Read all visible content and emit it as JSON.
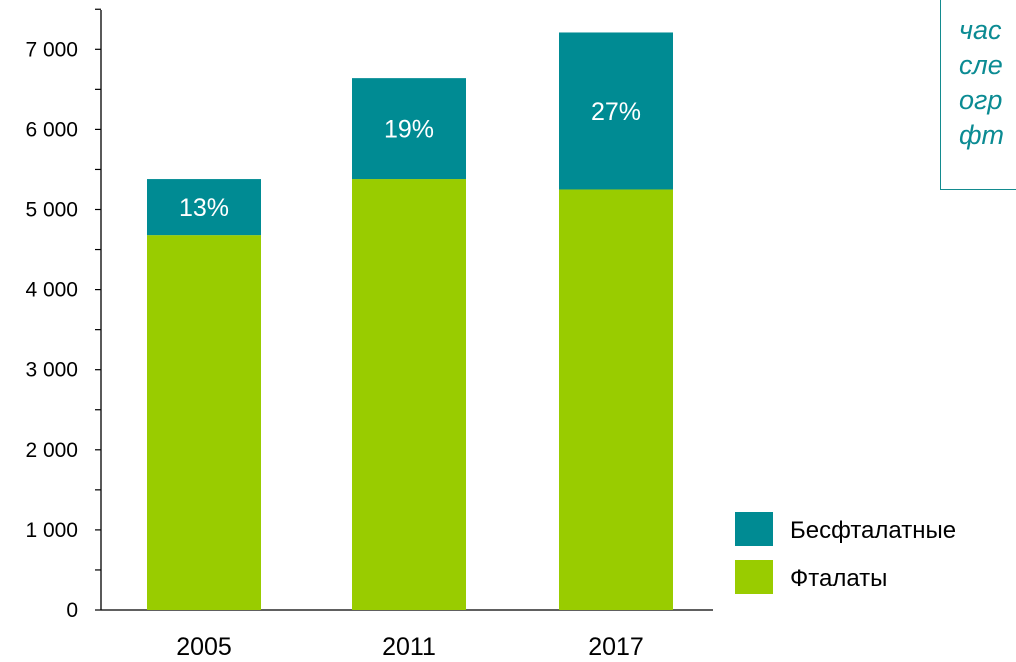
{
  "chart_data": {
    "type": "bar",
    "stacked": true,
    "categories": [
      "2005",
      "2011",
      "2017"
    ],
    "series": [
      {
        "name": "Фталаты",
        "values": [
          4680,
          5380,
          5250
        ],
        "color": "#99cc00"
      },
      {
        "name": "Бесфталатные",
        "values": [
          700,
          1260,
          1960
        ],
        "color": "#008b93"
      }
    ],
    "data_labels": [
      "13%",
      "19%",
      "27%"
    ],
    "y_ticks": [
      0,
      1000,
      2000,
      3000,
      4000,
      5000,
      6000,
      7000
    ],
    "y_tick_labels": [
      "0",
      "1 000",
      "2 000",
      "3 000",
      "4 000",
      "5 000",
      "6 000",
      "7 000"
    ],
    "ylim": [
      0,
      7500
    ],
    "legend": {
      "position": "bottom-right",
      "order": [
        "Бесфталатные",
        "Фталаты"
      ]
    },
    "grid": false
  },
  "note": {
    "lines": [
      "час",
      "сле",
      "огр",
      "фт"
    ]
  }
}
